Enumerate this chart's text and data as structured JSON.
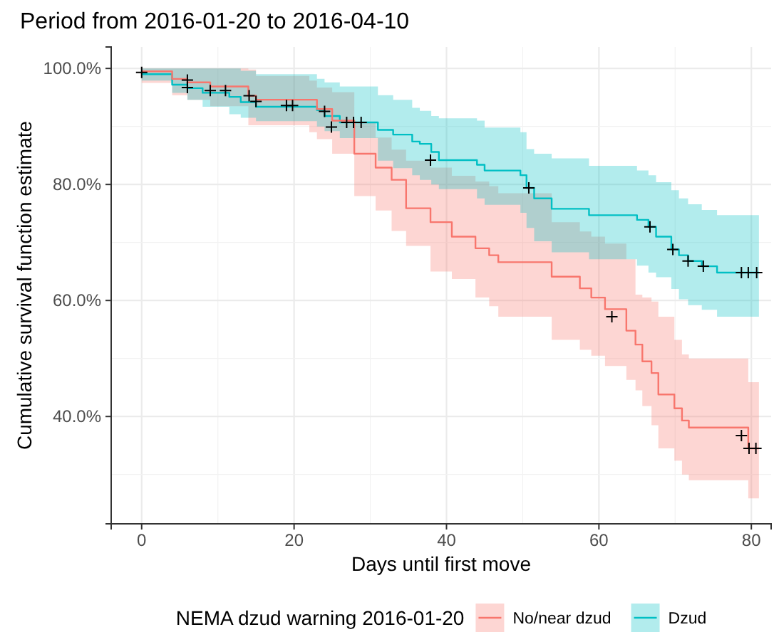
{
  "chart_data": {
    "type": "step",
    "title": "Period from 2016-01-20 to 2016-04-10",
    "xlabel": "Days until first move",
    "ylabel": "Cumulative survival function estimate",
    "legend_title": "NEMA dzud warning 2016-01-20",
    "legend": "bottom",
    "grid": true,
    "xlim": [
      -4,
      82.6
    ],
    "xticks": [
      0,
      20,
      40,
      60,
      80
    ],
    "ylim": [
      21.5,
      103.7
    ],
    "yticks": [
      {
        "value": 40,
        "label": "40.0%"
      },
      {
        "value": 60,
        "label": "60.0%"
      },
      {
        "value": 80,
        "label": "80.0%"
      },
      {
        "value": 100,
        "label": "100.0%"
      }
    ],
    "series": [
      {
        "name": "No/near dzud",
        "color": "#f8766d",
        "x": [
          0,
          4,
          6,
          9,
          14,
          15,
          22,
          23,
          25,
          27.9,
          30.7,
          32.8,
          34.7,
          37.9,
          40.7,
          43.8,
          45.6,
          46.8,
          53.8,
          57.5,
          59,
          60.8,
          63.6,
          64.8,
          65.7,
          66.9,
          67.8,
          69.9,
          70.9,
          71.8,
          79.6,
          81
        ],
        "values": [
          99.5,
          98.2,
          97.6,
          96.9,
          95.3,
          94.6,
          94.6,
          93.0,
          91.0,
          85.3,
          82.9,
          80.8,
          75.9,
          73.5,
          71.0,
          69.0,
          67.8,
          66.6,
          64.1,
          62.1,
          60.5,
          58.5,
          54.8,
          52.4,
          49.5,
          47.5,
          43.8,
          41.4,
          39.3,
          38.1,
          34.5,
          34.5
        ],
        "lower": [
          97.5,
          95.4,
          94.6,
          93.5,
          90.2,
          90.2,
          89.0,
          87.8,
          85.3,
          78.0,
          75.5,
          72.0,
          69.4,
          65.0,
          63.7,
          60.5,
          59.0,
          57.2,
          53.2,
          51.5,
          50.5,
          48.7,
          46.3,
          44.5,
          41.8,
          38.5,
          34.5,
          32.4,
          30.0,
          29.0,
          25.9,
          25.9
        ],
        "upper": [
          100,
          100,
          100,
          100,
          99.8,
          98.7,
          97.9,
          96.7,
          95.9,
          90.6,
          88.1,
          86.0,
          84.1,
          82.9,
          81.5,
          80.5,
          79.7,
          78.5,
          73.5,
          71.9,
          71.0,
          69.8,
          67.1,
          61.0,
          60.5,
          59.8,
          57.2,
          53.2,
          50.7,
          50.0,
          45.9,
          45.9
        ]
      },
      {
        "name": "Dzud",
        "color": "#00bfc4",
        "x": [
          0,
          4,
          6,
          8,
          11.5,
          13,
          15,
          23,
          24,
          26,
          31,
          33,
          35.5,
          36.5,
          38,
          39,
          44,
          45,
          49.7,
          50.5,
          51.5,
          53.8,
          58.7,
          65,
          66.5,
          67.5,
          69.5,
          70.5,
          71.7,
          73.5,
          75.5,
          81
        ],
        "values": [
          99.0,
          97.2,
          96.6,
          95.8,
          95.1,
          94.2,
          93.4,
          92.8,
          91.8,
          90.7,
          89.4,
          88.6,
          87.4,
          87.0,
          85.6,
          84.2,
          83.4,
          82.4,
          81.6,
          79.4,
          77.6,
          75.8,
          74.7,
          73.9,
          72.7,
          71.0,
          68.8,
          67.8,
          66.8,
          65.9,
          64.8,
          64.8
        ],
        "lower": [
          97.9,
          95.8,
          94.6,
          93.4,
          92.1,
          91.5,
          90.9,
          90.0,
          89.2,
          88.0,
          84.1,
          82.8,
          81.6,
          80.8,
          80.0,
          79.2,
          77.6,
          76.5,
          75.1,
          72.5,
          70.2,
          68.3,
          67.1,
          66.0,
          64.8,
          64.0,
          62.0,
          60.2,
          59.2,
          58.4,
          57.2,
          57.2
        ],
        "upper": [
          100,
          100,
          100,
          100,
          100,
          99.6,
          99.0,
          98.2,
          97.6,
          96.9,
          95.4,
          94.6,
          93.2,
          92.7,
          91.8,
          91.4,
          91.0,
          89.8,
          89.0,
          86.1,
          85.3,
          84.5,
          83.2,
          82.4,
          81.6,
          80.4,
          79.0,
          77.6,
          76.6,
          75.6,
          74.7,
          74.7
        ]
      },
      {
        "type": "scatter",
        "color": "#000000",
        "marker": "cross",
        "x": [
          0,
          6,
          6,
          9,
          11,
          14.1,
          15,
          19,
          19.8,
          24,
          24.9,
          26.9,
          27.8,
          28.8,
          37.9,
          50.8,
          61.7,
          66.7,
          69.7,
          71.7,
          73.7,
          78.7,
          79.6,
          80.7,
          78.7,
          79.7,
          80.6
        ],
        "values": [
          99.3,
          98.0,
          96.7,
          96.2,
          96.2,
          95.3,
          94.3,
          93.6,
          93.6,
          92.6,
          89.9,
          90.7,
          90.7,
          90.7,
          84.2,
          79.4,
          57.2,
          72.7,
          68.8,
          66.8,
          65.9,
          64.8,
          64.8,
          64.8,
          36.7,
          34.5,
          34.5
        ]
      }
    ]
  }
}
